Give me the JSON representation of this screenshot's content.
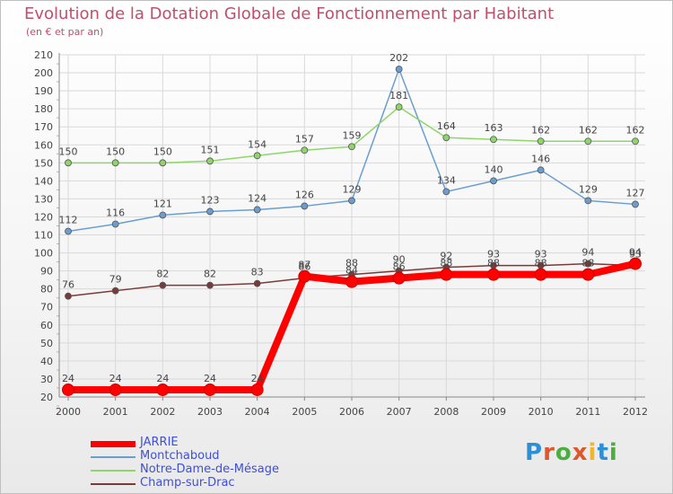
{
  "header": {
    "title": "Evolution de la Dotation Globale de Fonctionnement par Habitant",
    "subtitle": "(en € et par an)"
  },
  "logo": {
    "text": "Proxiti",
    "colors": [
      "#2d8fd6",
      "#e0582a",
      "#4cae3f",
      "#e0582a",
      "#f0b72a",
      "#2d8fd6",
      "#4cae3f"
    ]
  },
  "chart_data": {
    "type": "line",
    "title": "Evolution de la Dotation Globale de Fonctionnement par Habitant",
    "subtitle": "(en € et par an)",
    "xlabel": "",
    "ylabel": "",
    "ylim": [
      20,
      210
    ],
    "yticks": [
      20,
      30,
      40,
      50,
      60,
      70,
      80,
      90,
      100,
      110,
      120,
      130,
      140,
      150,
      160,
      170,
      180,
      190,
      200,
      210
    ],
    "categories": [
      "2000",
      "2001",
      "2002",
      "2003",
      "2004",
      "2005",
      "2006",
      "2007",
      "2008",
      "2009",
      "2010",
      "2011",
      "2012"
    ],
    "grid": true,
    "legend_position": "bottom-left",
    "series": [
      {
        "name": "JARRIE",
        "color": "#ff0000",
        "highlight": true,
        "values": [
          24,
          24,
          24,
          24,
          24,
          87,
          84,
          86,
          88,
          88,
          88,
          88,
          94
        ],
        "labels": [
          "24",
          "24",
          "24",
          "24",
          "24",
          "87",
          "84",
          "86",
          "88",
          "88",
          "88",
          "88",
          "94"
        ]
      },
      {
        "name": "Montchaboud",
        "color": "#6a9ed0",
        "highlight": false,
        "values": [
          112,
          116,
          121,
          123,
          124,
          126,
          129,
          202,
          134,
          140,
          146,
          129,
          127
        ],
        "labels": [
          "112",
          "116",
          "121",
          "123",
          "124",
          "126",
          "129",
          "202",
          "134",
          "140",
          "146",
          "129",
          "127"
        ]
      },
      {
        "name": "Notre-Dame-de-Mésage",
        "color": "#8ed66a",
        "highlight": false,
        "values": [
          150,
          150,
          150,
          151,
          154,
          157,
          159,
          181,
          164,
          163,
          162,
          162,
          162
        ],
        "labels": [
          "150",
          "150",
          "150",
          "151",
          "154",
          "157",
          "159",
          "181",
          "164",
          "163",
          "162",
          "162",
          "162"
        ]
      },
      {
        "name": "Champ-sur-Drac",
        "color": "#7a3a3a",
        "highlight": false,
        "values": [
          76,
          79,
          82,
          82,
          83,
          86,
          88,
          90,
          92,
          93,
          93,
          94,
          93
        ],
        "labels": [
          "76",
          "79",
          "82",
          "82",
          "83",
          "86",
          "88",
          "90",
          "92",
          "93",
          "93",
          "94",
          "93"
        ]
      }
    ]
  }
}
